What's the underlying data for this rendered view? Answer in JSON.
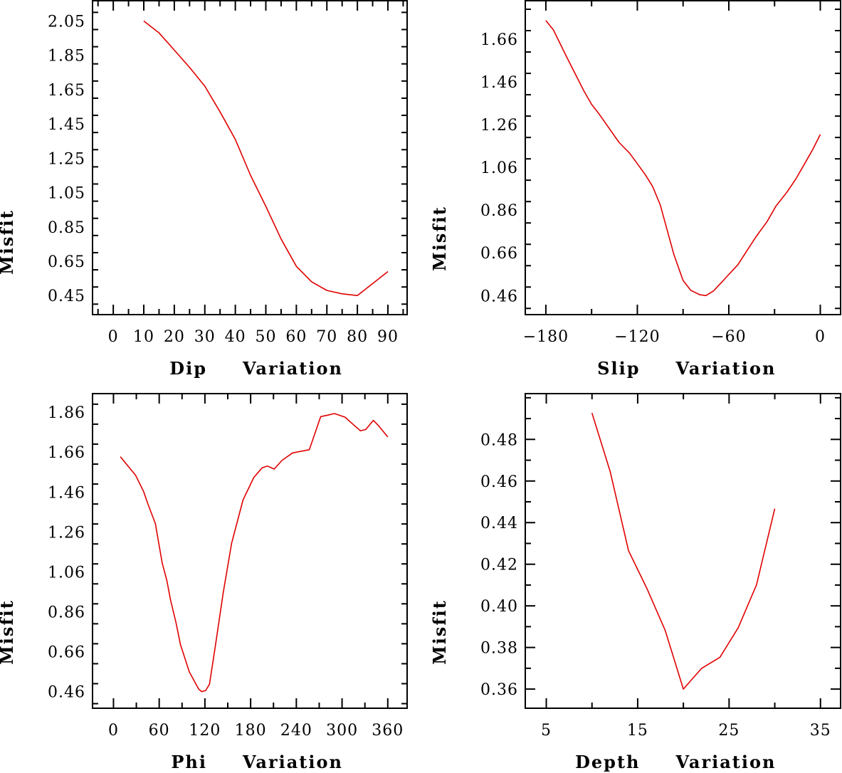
{
  "chart_data": [
    {
      "type": "line",
      "title": "",
      "xlabel_word1": "Dip",
      "xlabel_word2": "Variation",
      "ylabel": "Misfit",
      "xlim": [
        -6.8,
        96.3
      ],
      "ylim": [
        0.339,
        2.168
      ],
      "xticks": [
        0,
        10,
        20,
        30,
        40,
        50,
        60,
        70,
        80,
        90
      ],
      "xtick_labels": [
        "0",
        "10",
        "20",
        "30",
        "40",
        "50",
        "60",
        "70",
        "80",
        "90"
      ],
      "xminor_step": 5,
      "yticks": [
        0.45,
        0.65,
        0.85,
        1.05,
        1.25,
        1.45,
        1.65,
        1.85,
        2.05
      ],
      "ytick_labels": [
        "0.45",
        "0.65",
        "0.85",
        "1.05",
        "1.25",
        "1.45",
        "1.65",
        "1.85",
        "2.05"
      ],
      "yminor_step": 0.1,
      "series": [
        {
          "name": "misfit",
          "color": "#e00000",
          "x": [
            10,
            15,
            20,
            25,
            30,
            35,
            40,
            45,
            50,
            55,
            60,
            65,
            70,
            75,
            80,
            85,
            90
          ],
          "y": [
            2.05,
            1.98,
            1.88,
            1.78,
            1.67,
            1.52,
            1.36,
            1.15,
            0.97,
            0.78,
            0.62,
            0.53,
            0.48,
            0.46,
            0.45,
            0.52,
            0.59
          ]
        }
      ]
    },
    {
      "type": "line",
      "title": "",
      "xlabel_word1": "Slip",
      "xlabel_word2": "Variation",
      "ylabel": "Misfit",
      "xlim": [
        -193.5,
        13.3
      ],
      "ylim": [
        0.371,
        1.84
      ],
      "xticks": [
        -180,
        -120,
        -60,
        0
      ],
      "xtick_labels": [
        "−180",
        "−120",
        "−60",
        "0"
      ],
      "xminor_step": 30,
      "yticks": [
        0.46,
        0.66,
        0.86,
        1.06,
        1.26,
        1.46,
        1.66
      ],
      "ytick_labels": [
        "0.46",
        "0.66",
        "0.86",
        "1.06",
        "1.26",
        "1.46",
        "1.66"
      ],
      "yminor_step": 0.1,
      "series": [
        {
          "name": "misfit",
          "color": "#e00000",
          "x": [
            -180,
            -175,
            -166,
            -155,
            -150,
            -145,
            -132,
            -125,
            -115,
            -110,
            -105,
            -96,
            -90,
            -85,
            -79,
            -75,
            -70,
            -63,
            -54,
            -42,
            -35,
            -29,
            -22,
            -16,
            -11,
            -5,
            0
          ],
          "y": [
            1.747,
            1.703,
            1.572,
            1.417,
            1.355,
            1.309,
            1.177,
            1.126,
            1.028,
            0.971,
            0.885,
            0.651,
            0.531,
            0.485,
            0.464,
            0.46,
            0.482,
            0.536,
            0.605,
            0.737,
            0.805,
            0.88,
            0.943,
            1.006,
            1.068,
            1.143,
            1.214
          ]
        }
      ]
    },
    {
      "type": "line",
      "title": "",
      "xlabel_word1": "Phi",
      "xlabel_word2": "Variation",
      "ylabel": "Misfit",
      "xlim": [
        -27.5,
        385.4
      ],
      "ylim": [
        0.377,
        1.953
      ],
      "xticks": [
        0,
        60,
        120,
        180,
        240,
        300,
        360
      ],
      "xtick_labels": [
        "0",
        "60",
        "120",
        "180",
        "240",
        "300",
        "360"
      ],
      "xminor_step": 30,
      "yticks": [
        0.46,
        0.66,
        0.86,
        1.06,
        1.26,
        1.46,
        1.66,
        1.86
      ],
      "ytick_labels": [
        "0.46",
        "0.66",
        "0.86",
        "1.06",
        "1.26",
        "1.46",
        "1.66",
        "1.86"
      ],
      "yminor_step": 0.1,
      "series": [
        {
          "name": "misfit",
          "color": "#e00000",
          "x": [
            9,
            29,
            39.5,
            45,
            55,
            64,
            70,
            75,
            82,
            88,
            99.5,
            112,
            116,
            121,
            126,
            133,
            144,
            155,
            170,
            184,
            195,
            202,
            211,
            221,
            235,
            257,
            264,
            272,
            281,
            290,
            304,
            313,
            324,
            331,
            341,
            348,
            360
          ],
          "y": [
            1.637,
            1.544,
            1.463,
            1.402,
            1.302,
            1.104,
            1.017,
            0.918,
            0.807,
            0.695,
            0.559,
            0.472,
            0.46,
            0.466,
            0.497,
            0.67,
            0.955,
            1.203,
            1.42,
            1.532,
            1.581,
            1.59,
            1.575,
            1.618,
            1.656,
            1.672,
            1.749,
            1.838,
            1.845,
            1.853,
            1.835,
            1.804,
            1.767,
            1.773,
            1.819,
            1.792,
            1.736
          ]
        }
      ]
    },
    {
      "type": "line",
      "title": "",
      "xlabel_word1": "Depth",
      "xlabel_word2": "Variation",
      "ylabel": "Misfit",
      "xlim": [
        2.7,
        37.2
      ],
      "ylim": [
        0.3508,
        0.502
      ],
      "xticks": [
        5,
        15,
        25,
        35
      ],
      "xtick_labels": [
        "5",
        "15",
        "25",
        "35"
      ],
      "xminor_step": 5,
      "yticks": [
        0.36,
        0.38,
        0.4,
        0.42,
        0.44,
        0.46,
        0.48
      ],
      "ytick_labels": [
        "0.36",
        "0.38",
        "0.40",
        "0.42",
        "0.44",
        "0.46",
        "0.48"
      ],
      "yminor_step": 0.01,
      "series": [
        {
          "name": "misfit",
          "color": "#e00000",
          "x": [
            10,
            12,
            14,
            16,
            18,
            20,
            22,
            24,
            26,
            28,
            30
          ],
          "y": [
            0.4927,
            0.4644,
            0.4265,
            0.4084,
            0.3883,
            0.36,
            0.37,
            0.3753,
            0.3895,
            0.4101,
            0.4467
          ]
        }
      ]
    }
  ]
}
